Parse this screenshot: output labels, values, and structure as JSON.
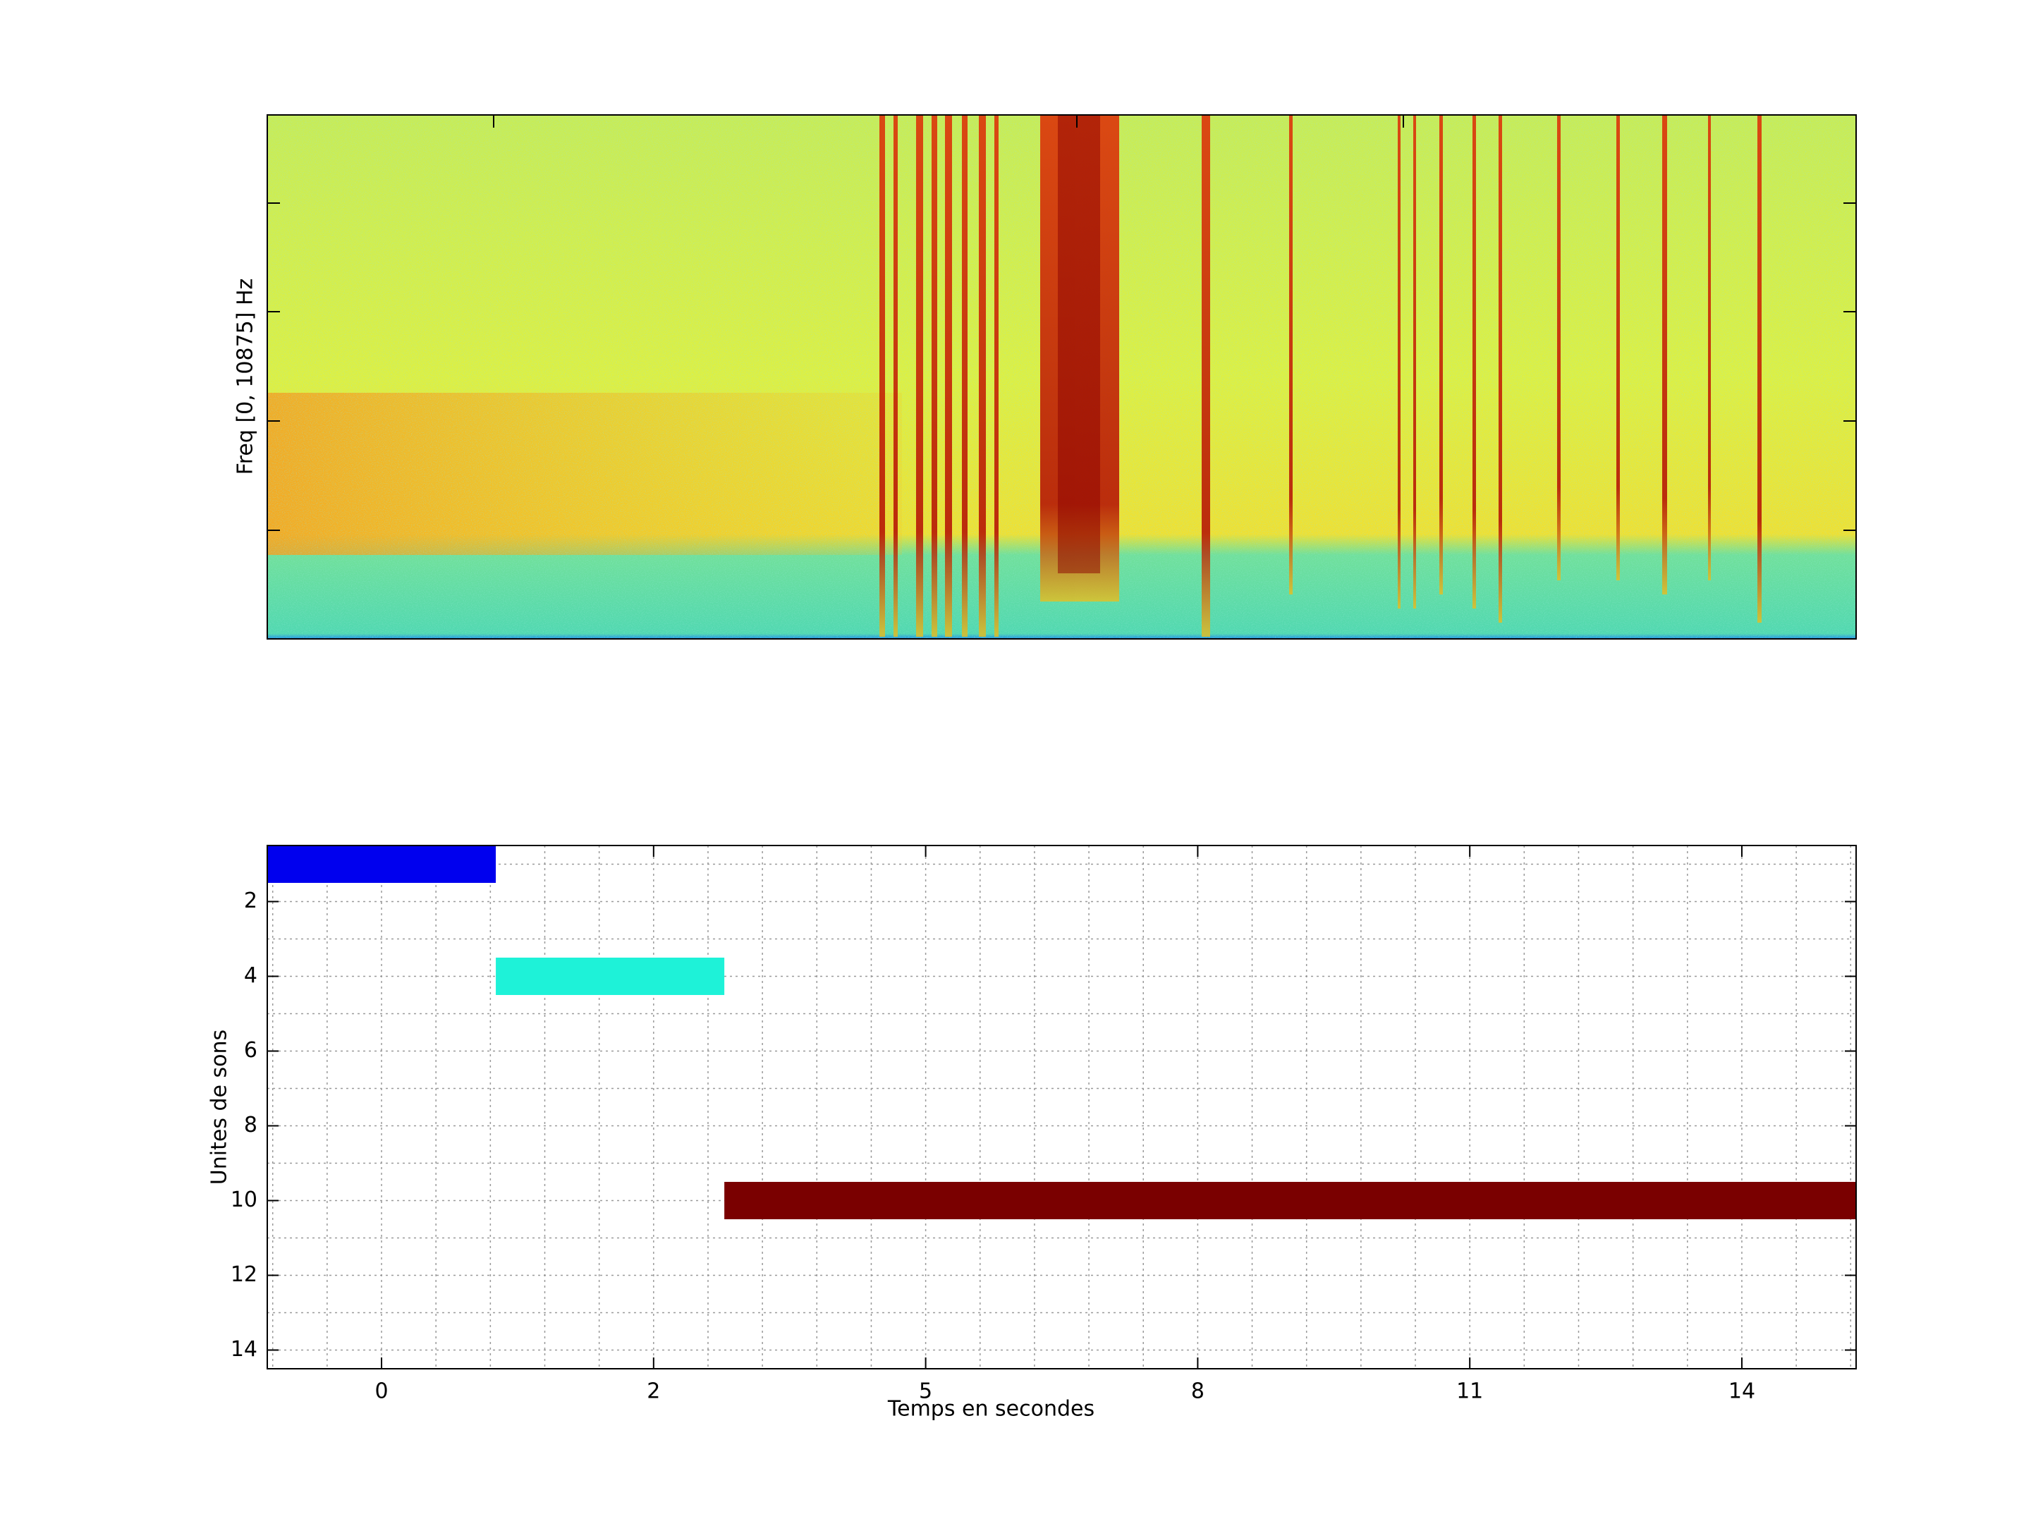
{
  "charts": [
    {
      "type": "spectrogram",
      "ylabel": "Freq [0, 10875] Hz"
    },
    {
      "type": "gantt",
      "xlabel": "Temps en secondes",
      "ylabel": "Unites de sons",
      "xlim": [
        2.9,
        32.1
      ],
      "xticks": [
        {
          "value": 5,
          "label": "0"
        },
        {
          "value": 10,
          "label": "2"
        },
        {
          "value": 15,
          "label": "5"
        },
        {
          "value": 20,
          "label": "8"
        },
        {
          "value": 25,
          "label": "11"
        },
        {
          "value": 30,
          "label": "14"
        }
      ],
      "xminorticks": [
        3,
        4,
        6,
        7,
        8,
        9,
        11,
        12,
        13,
        14,
        16,
        17,
        18,
        19,
        21,
        22,
        23,
        24,
        26,
        27,
        28,
        29,
        31,
        32
      ],
      "ylim": [
        0.5,
        14.5
      ],
      "y_reversed": true,
      "yticks": [
        2,
        4,
        6,
        8,
        10,
        12,
        14
      ],
      "yminorticks": [
        1,
        3,
        5,
        7,
        9,
        11,
        13
      ],
      "grid": true,
      "series": [
        {
          "color": "#0000ee",
          "row": 1,
          "start": 2.9,
          "end": 7.1
        },
        {
          "color": "#1ef2d8",
          "row": 4,
          "start": 7.1,
          "end": 11.3
        },
        {
          "color": "#7a0000",
          "row": 10,
          "start": 11.3,
          "end": 32.1
        }
      ]
    }
  ]
}
